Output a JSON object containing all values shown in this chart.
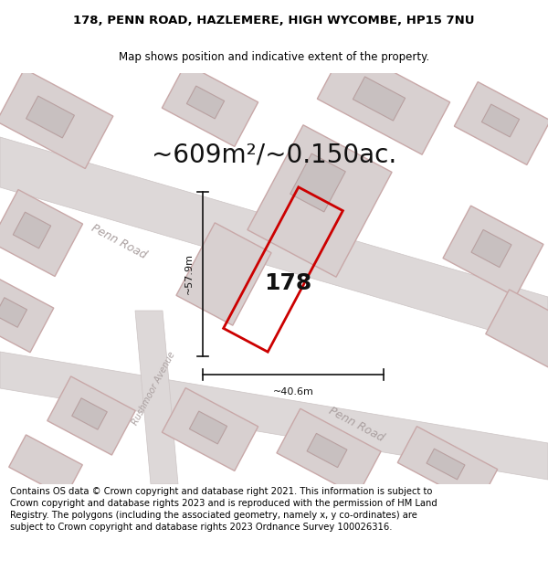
{
  "title_line1": "178, PENN ROAD, HAZLEMERE, HIGH WYCOMBE, HP15 7NU",
  "title_line2": "Map shows position and indicative extent of the property.",
  "area_text": "~609m²/~0.150ac.",
  "property_number": "178",
  "dim_vertical": "~57.9m",
  "dim_horizontal": "~40.6m",
  "footer_text": "Contains OS data © Crown copyright and database right 2021. This information is subject to Crown copyright and database rights 2023 and is reproduced with the permission of HM Land Registry. The polygons (including the associated geometry, namely x, y co-ordinates) are subject to Crown copyright and database rights 2023 Ordnance Survey 100026316.",
  "map_bg": "#ede8e8",
  "road_fill": "#ddd8d8",
  "bldg_fill": "#d8d0d0",
  "bldg_edge": "#c8a8a8",
  "inner_fill": "#c8c0c0",
  "inner_edge": "#b8a0a0",
  "prop_edge": "#cc0000",
  "dim_color": "#111111",
  "road_label_color": "#aaa0a0",
  "title_fontsize": 9.5,
  "subtitle_fontsize": 8.5,
  "area_fontsize": 20,
  "number_fontsize": 18,
  "dim_fontsize": 8,
  "road_fontsize": 9,
  "footer_fontsize": 7.2
}
